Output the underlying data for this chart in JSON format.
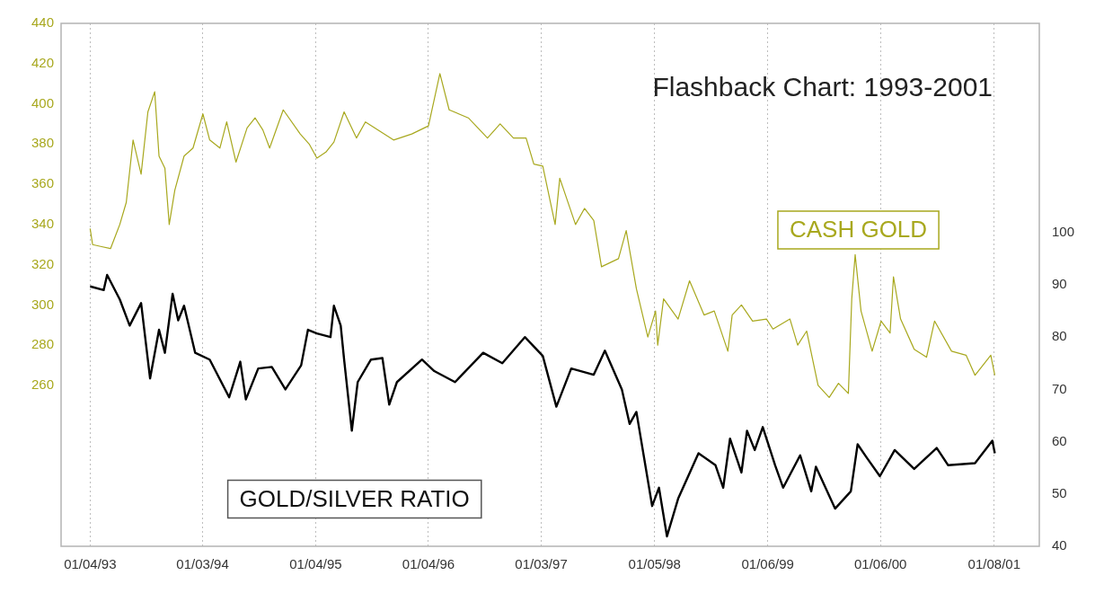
{
  "chart_data": {
    "type": "line",
    "title": "Flashback Chart: 1993-2001",
    "xlim": [
      "1992-10-02",
      "2001-06-03"
    ],
    "xticks": [
      {
        "value": "1993-01-04",
        "label": "01/04/93"
      },
      {
        "value": "1994-01-03",
        "label": "01/03/94"
      },
      {
        "value": "1995-01-04",
        "label": "01/04/95"
      },
      {
        "value": "1996-01-04",
        "label": "01/04/96"
      },
      {
        "value": "1997-01-03",
        "label": "01/03/97"
      },
      {
        "value": "1998-01-05",
        "label": "01/05/98"
      },
      {
        "value": "1999-01-06",
        "label": "01/06/99"
      },
      {
        "value": "2000-01-06",
        "label": "01/06/00"
      },
      {
        "value": "2001-01-08",
        "label": "01/08/01"
      }
    ],
    "ylim": [
      180,
      440
    ],
    "yticks": [
      260,
      280,
      300,
      320,
      340,
      360,
      380,
      400,
      420,
      440
    ],
    "y2lim": [
      40,
      140
    ],
    "y2ticks": [
      40,
      50,
      60,
      70,
      80,
      90,
      100
    ],
    "grid": "x",
    "legend": false,
    "marker": "none",
    "line_style": "solid",
    "series": [
      {
        "name": "CASH GOLD",
        "color": "#a8a81e",
        "x": [
          "1993-01-04",
          "1993-01-12",
          "1993-02-10",
          "1993-03-11",
          "1993-04-10",
          "1993-05-01",
          "1993-05-23",
          "1993-06-18",
          "1993-07-10",
          "1993-08-01",
          "1993-08-15",
          "1993-09-03",
          "1993-09-17",
          "1993-10-05",
          "1993-11-04",
          "1993-12-03",
          "1994-01-04",
          "1994-01-26",
          "1994-02-28",
          "1994-03-22",
          "1994-04-21",
          "1994-05-27",
          "1994-06-22",
          "1994-07-17",
          "1994-08-08",
          "1994-09-21",
          "1994-11-15",
          "1994-12-14",
          "1995-01-08",
          "1995-02-06",
          "1995-03-04",
          "1995-04-06",
          "1995-05-16",
          "1995-06-14",
          "1995-09-13",
          "1995-11-11",
          "1996-01-04",
          "1996-02-10",
          "1996-03-11",
          "1996-05-12",
          "1996-07-13",
          "1996-08-23",
          "1996-10-05",
          "1996-11-15",
          "1996-12-10",
          "1997-01-08",
          "1997-02-17",
          "1997-03-04",
          "1997-04-24",
          "1997-05-23",
          "1997-06-22",
          "1997-07-17",
          "1997-09-10",
          "1997-10-05",
          "1997-11-07",
          "1997-12-14",
          "1998-01-08",
          "1998-01-15",
          "1998-02-03",
          "1998-03-22",
          "1998-04-28",
          "1998-06-14",
          "1998-07-17",
          "1998-08-30",
          "1998-09-13",
          "1998-10-13",
          "1998-11-18",
          "1999-01-02",
          "1999-01-23",
          "1999-03-19",
          "1999-04-13",
          "1999-05-12",
          "1999-06-18",
          "1999-07-24",
          "1999-08-23",
          "1999-09-24",
          "1999-10-05",
          "1999-10-16",
          "1999-11-04",
          "1999-12-10",
          "2000-01-08",
          "2000-02-06",
          "2000-02-17",
          "2000-03-11",
          "2000-04-24",
          "2000-06-03",
          "2000-06-29",
          "2000-08-23",
          "2000-10-09",
          "2000-11-07",
          "2000-12-28",
          "2001-01-10"
        ],
        "values": [
          338,
          330,
          329,
          328,
          340,
          351,
          382,
          365,
          396,
          406,
          374,
          368,
          340,
          357,
          374,
          378,
          395,
          382,
          378,
          391,
          371,
          388,
          393,
          387,
          378,
          397,
          385,
          380,
          373,
          376,
          381,
          396,
          383,
          391,
          382,
          385,
          389,
          415,
          397,
          393,
          383,
          390,
          383,
          383,
          370,
          369,
          340,
          363,
          340,
          348,
          342,
          319,
          323,
          337,
          308,
          284,
          297,
          280,
          303,
          293,
          312,
          295,
          297,
          277,
          295,
          300,
          292,
          293,
          288,
          293,
          280,
          287,
          260,
          254,
          261,
          256,
          303,
          325,
          297,
          277,
          292,
          286,
          314,
          293,
          278,
          274,
          292,
          277,
          275,
          265,
          275,
          265
        ]
      },
      {
        "name": "GOLD/SILVER RATIO",
        "color": "#000000",
        "axis": "y2",
        "x": [
          "1993-01-04",
          "1993-02-17",
          "1993-02-28",
          "1993-04-10",
          "1993-05-12",
          "1993-06-18",
          "1993-07-17",
          "1993-08-15",
          "1993-09-03",
          "1993-09-28",
          "1993-10-16",
          "1993-11-04",
          "1993-12-10",
          "1994-01-26",
          "1994-03-30",
          "1994-05-05",
          "1994-05-23",
          "1994-07-02",
          "1994-08-15",
          "1994-09-28",
          "1994-11-18",
          "1994-12-10",
          "1995-01-08",
          "1995-02-21",
          "1995-03-04",
          "1995-03-26",
          "1995-04-06",
          "1995-05-01",
          "1995-05-20",
          "1995-07-02",
          "1995-08-08",
          "1995-08-30",
          "1995-09-24",
          "1995-12-14",
          "1996-01-23",
          "1996-03-30",
          "1996-06-29",
          "1996-08-30",
          "1996-11-11",
          "1997-01-08",
          "1997-02-21",
          "1997-04-10",
          "1997-06-22",
          "1997-07-28",
          "1997-09-21",
          "1997-10-16",
          "1997-11-07",
          "1997-12-28",
          "1998-01-19",
          "1998-02-14",
          "1998-03-22",
          "1998-05-27",
          "1998-07-21",
          "1998-08-15",
          "1998-09-06",
          "1998-10-13",
          "1998-10-31",
          "1998-11-25",
          "1998-12-21",
          "1999-01-30",
          "1999-02-25",
          "1999-04-21",
          "1999-05-27",
          "1999-06-11",
          "1999-08-12",
          "1999-10-02",
          "1999-10-24",
          "1999-11-22",
          "2000-01-04",
          "2000-02-21",
          "2000-04-24",
          "2000-07-06",
          "2000-08-12",
          "2000-11-07",
          "2001-01-02",
          "2001-01-10"
        ],
        "values": [
          89.7,
          89,
          91.9,
          87.2,
          82.2,
          86.5,
          72.1,
          81.4,
          77,
          88.3,
          83.2,
          86,
          77,
          75.7,
          68.5,
          75.3,
          68.1,
          74,
          74.3,
          70,
          74.6,
          81.4,
          80.7,
          80,
          86,
          82.2,
          75.7,
          62.1,
          71.4,
          75.7,
          76,
          67.1,
          71.4,
          75.7,
          73.5,
          71.4,
          77,
          75,
          80,
          76.4,
          66.7,
          74,
          72.8,
          77.4,
          70,
          63.4,
          65.7,
          47.7,
          51.2,
          41.9,
          49.1,
          57.8,
          55.5,
          51.2,
          60.6,
          54.1,
          62.1,
          58.4,
          62.8,
          55.5,
          51.2,
          57.4,
          50.5,
          55.2,
          47.2,
          50.5,
          59.5,
          57,
          53.4,
          58.4,
          54.8,
          58.8,
          55.5,
          55.9,
          60.2,
          57.8
        ]
      }
    ]
  }
}
